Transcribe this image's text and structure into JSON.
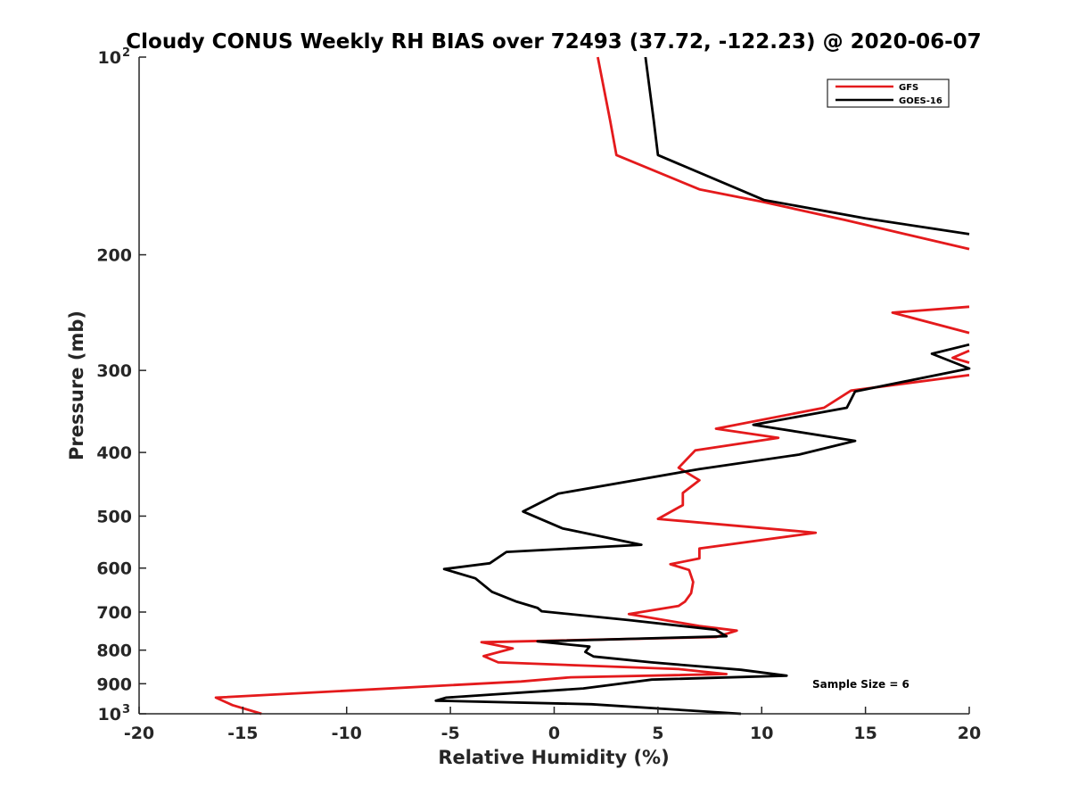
{
  "chart_data": {
    "type": "line",
    "title": "Cloudy CONUS Weekly RH BIAS over 72493 (37.72, -122.23) @ 2020-06-07",
    "xlabel": "Relative Humidity (%)",
    "ylabel": "Pressure (mb)",
    "xlim": [
      -20,
      20
    ],
    "ylim": [
      100,
      1000
    ],
    "yscale": "log",
    "y_reversed": true,
    "grid": false,
    "legend_position": "top-right",
    "x_ticks": [
      {
        "value": -20,
        "label": "-20"
      },
      {
        "value": -15,
        "label": "-15"
      },
      {
        "value": -10,
        "label": "-10"
      },
      {
        "value": -5,
        "label": "-5"
      },
      {
        "value": 0,
        "label": "0"
      },
      {
        "value": 5,
        "label": "5"
      },
      {
        "value": 10,
        "label": "10"
      },
      {
        "value": 15,
        "label": "15"
      },
      {
        "value": 20,
        "label": "20"
      }
    ],
    "y_ticks": [
      {
        "value": 100,
        "base": "10",
        "exp": "2"
      },
      {
        "value": 200,
        "base": "200",
        "exp": ""
      },
      {
        "value": 300,
        "base": "300",
        "exp": ""
      },
      {
        "value": 400,
        "base": "400",
        "exp": ""
      },
      {
        "value": 500,
        "base": "500",
        "exp": ""
      },
      {
        "value": 600,
        "base": "600",
        "exp": ""
      },
      {
        "value": 700,
        "base": "700",
        "exp": ""
      },
      {
        "value": 800,
        "base": "800",
        "exp": ""
      },
      {
        "value": 900,
        "base": "900",
        "exp": ""
      },
      {
        "value": 1000,
        "base": "10",
        "exp": "3"
      }
    ],
    "annotation": "Sample Size = 6",
    "series": [
      {
        "name": "GFS",
        "color": "#e41a1c",
        "points": [
          [
            2.1,
            100
          ],
          [
            2.7,
            125
          ],
          [
            3.0,
            141
          ],
          [
            7.0,
            159
          ],
          [
            10.0,
            166
          ],
          [
            14.0,
            177
          ],
          [
            20.0,
            196
          ],
          null,
          [
            20.0,
            240
          ],
          [
            16.3,
            245
          ],
          [
            20.0,
            263
          ],
          null,
          [
            20.0,
            280
          ],
          [
            19.2,
            287
          ],
          [
            20.0,
            292
          ],
          null,
          [
            20.0,
            305
          ],
          [
            14.3,
            322
          ],
          [
            13.0,
            342
          ],
          [
            7.8,
            368
          ],
          [
            10.8,
            380
          ],
          [
            6.8,
            397
          ],
          [
            6.0,
            422
          ],
          [
            7.0,
            441
          ],
          [
            6.2,
            461
          ],
          [
            6.2,
            481
          ],
          [
            5.0,
            505
          ],
          [
            12.6,
            530
          ],
          [
            7.0,
            560
          ],
          [
            7.0,
            580
          ],
          [
            5.6,
            592
          ],
          [
            6.5,
            604
          ],
          [
            6.7,
            630
          ],
          [
            6.6,
            655
          ],
          [
            6.3,
            675
          ],
          [
            6.0,
            685
          ],
          [
            3.6,
            705
          ],
          [
            7.0,
            735
          ],
          [
            8.8,
            747
          ],
          [
            7.8,
            764
          ],
          [
            -3.5,
            778
          ],
          [
            -2.0,
            795
          ],
          [
            -3.4,
            817
          ],
          [
            -2.7,
            835
          ],
          [
            6.0,
            855
          ],
          [
            8.3,
            870
          ],
          [
            0.8,
            880
          ],
          [
            -1.6,
            893
          ],
          [
            -16.3,
            945
          ],
          [
            -15.5,
            970
          ],
          [
            -14.1,
            1000
          ]
        ]
      },
      {
        "name": "GOES-16",
        "color": "#000000",
        "points": [
          [
            4.4,
            100
          ],
          [
            4.8,
            125
          ],
          [
            5.0,
            141
          ],
          [
            10.1,
            165
          ],
          [
            15.0,
            176
          ],
          [
            20.0,
            186
          ],
          null,
          [
            20.0,
            274
          ],
          [
            18.2,
            283
          ],
          [
            20.0,
            298
          ],
          [
            14.5,
            323
          ],
          [
            14.1,
            342
          ],
          [
            9.6,
            363
          ],
          [
            14.5,
            384
          ],
          [
            11.8,
            403
          ],
          [
            7.0,
            424
          ],
          [
            0.2,
            462
          ],
          [
            -1.5,
            492
          ],
          [
            0.4,
            522
          ],
          [
            4.2,
            553
          ],
          [
            -2.3,
            567
          ],
          [
            -3.1,
            590
          ],
          [
            -5.3,
            602
          ],
          [
            -3.8,
            622
          ],
          [
            -3.0,
            652
          ],
          [
            -1.8,
            675
          ],
          [
            -0.8,
            690
          ],
          [
            -0.6,
            698
          ],
          [
            3.6,
            720
          ],
          [
            7.8,
            745
          ],
          [
            8.0,
            752
          ],
          [
            8.3,
            762
          ],
          [
            -0.8,
            776
          ],
          [
            1.7,
            790
          ],
          [
            1.5,
            805
          ],
          [
            1.9,
            818
          ],
          [
            4.7,
            835
          ],
          [
            9.0,
            857
          ],
          [
            11.2,
            875
          ],
          [
            4.7,
            887
          ],
          [
            1.4,
            915
          ],
          [
            -5.2,
            945
          ],
          [
            -5.7,
            955
          ],
          [
            1.8,
            967
          ],
          [
            9.0,
            1000
          ]
        ]
      }
    ]
  }
}
